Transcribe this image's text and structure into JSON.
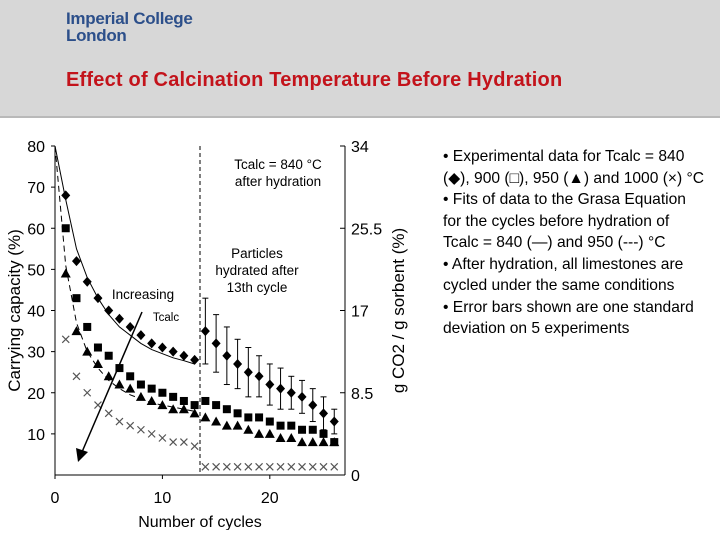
{
  "logo": {
    "line1": "Imperial College",
    "line2": "London"
  },
  "slide_title": "Effect of Calcination Temperature Before Hydration",
  "bullets": [
    "• Experimental data for Tcalc = 840 (◆), 900 (□), 950 (▲) and 1000 (×) °C",
    "• Fits of data to the Grasa Equation for the cycles before hydration of Tcalc = 840 (—) and 950 (---) °C",
    "• After hydration, all limestones are cycled under the same conditions",
    "• Error bars shown are one standard deviation on 5 experiments"
  ],
  "colors": {
    "title_red": "#c3131b",
    "logo_blue": "#2c4f8a",
    "header_gray": "#d7d7d7"
  },
  "chart_data": {
    "type": "scatter",
    "xlabel": "Number of cycles",
    "ylabel": "Carrying capacity (%)",
    "y2label": "g CO2 / g sorbent (%)",
    "xlim": [
      0,
      27
    ],
    "ylim": [
      0,
      80
    ],
    "y2lim": [
      0,
      34
    ],
    "xticks": [
      "0",
      "10",
      "20"
    ],
    "yticks": [
      "10",
      "20",
      "30",
      "40",
      "50",
      "60",
      "70",
      "80"
    ],
    "y2ticks": [
      "0",
      "8.5",
      "17",
      "25.5",
      "34"
    ],
    "hydration_cycle": 13.5,
    "annotations": {
      "hydration_top": "Tcalc = 840 °C",
      "hydration_bottom": "after hydration",
      "particles1": "Particles",
      "particles2": "hydrated after",
      "particles3": "13th cycle",
      "increasing1": "Increasing",
      "increasing2": "Tcalc"
    },
    "series": [
      {
        "marker": "diamond",
        "values": [
          [
            1,
            68
          ],
          [
            2,
            52
          ],
          [
            3,
            47
          ],
          [
            4,
            43
          ],
          [
            5,
            40
          ],
          [
            6,
            38
          ],
          [
            7,
            36
          ],
          [
            8,
            34
          ],
          [
            9,
            32
          ],
          [
            10,
            31
          ],
          [
            11,
            30
          ],
          [
            12,
            29
          ],
          [
            13,
            28
          ],
          [
            14,
            35
          ],
          [
            15,
            32
          ],
          [
            16,
            29
          ],
          [
            17,
            27
          ],
          [
            18,
            25
          ],
          [
            19,
            24
          ],
          [
            20,
            22
          ],
          [
            21,
            21
          ],
          [
            22,
            20
          ],
          [
            23,
            19
          ],
          [
            24,
            17
          ],
          [
            25,
            15
          ],
          [
            26,
            13
          ]
        ],
        "err": [
          [
            14,
            8
          ],
          [
            15,
            7
          ],
          [
            16,
            7
          ],
          [
            17,
            6
          ],
          [
            18,
            6
          ],
          [
            19,
            5
          ],
          [
            20,
            5
          ],
          [
            21,
            5
          ],
          [
            22,
            4
          ],
          [
            23,
            4
          ],
          [
            24,
            4
          ],
          [
            25,
            4
          ],
          [
            26,
            3
          ]
        ]
      },
      {
        "marker": "square",
        "values": [
          [
            1,
            60
          ],
          [
            2,
            43
          ],
          [
            3,
            36
          ],
          [
            4,
            31
          ],
          [
            5,
            29
          ],
          [
            6,
            26
          ],
          [
            7,
            24
          ],
          [
            8,
            22
          ],
          [
            9,
            21
          ],
          [
            10,
            20
          ],
          [
            11,
            19
          ],
          [
            12,
            18
          ],
          [
            13,
            17
          ],
          [
            14,
            18
          ],
          [
            15,
            17
          ],
          [
            16,
            16
          ],
          [
            17,
            15
          ],
          [
            18,
            14
          ],
          [
            19,
            14
          ],
          [
            20,
            13
          ],
          [
            21,
            12
          ],
          [
            22,
            12
          ],
          [
            23,
            11
          ],
          [
            24,
            11
          ],
          [
            25,
            10
          ],
          [
            26,
            8
          ]
        ]
      },
      {
        "marker": "triangle",
        "values": [
          [
            1,
            49
          ],
          [
            2,
            35
          ],
          [
            3,
            30
          ],
          [
            4,
            27
          ],
          [
            5,
            24
          ],
          [
            6,
            22
          ],
          [
            7,
            21
          ],
          [
            8,
            19
          ],
          [
            9,
            18
          ],
          [
            10,
            17
          ],
          [
            11,
            16
          ],
          [
            12,
            16
          ],
          [
            13,
            15
          ],
          [
            14,
            14
          ],
          [
            15,
            13
          ],
          [
            16,
            12
          ],
          [
            17,
            12
          ],
          [
            18,
            11
          ],
          [
            19,
            10
          ],
          [
            20,
            10
          ],
          [
            21,
            9
          ],
          [
            22,
            9
          ],
          [
            23,
            8
          ],
          [
            24,
            8
          ],
          [
            25,
            8
          ],
          [
            26,
            8
          ]
        ]
      },
      {
        "marker": "cross",
        "values": [
          [
            1,
            33
          ],
          [
            2,
            24
          ],
          [
            3,
            20
          ],
          [
            4,
            17
          ],
          [
            5,
            15
          ],
          [
            6,
            13
          ],
          [
            7,
            12
          ],
          [
            8,
            11
          ],
          [
            9,
            10
          ],
          [
            10,
            9
          ],
          [
            11,
            8
          ],
          [
            12,
            8
          ],
          [
            13,
            7
          ],
          [
            14,
            2
          ],
          [
            15,
            2
          ],
          [
            16,
            2
          ],
          [
            17,
            2
          ],
          [
            18,
            2
          ],
          [
            19,
            2
          ],
          [
            20,
            2
          ],
          [
            21,
            2
          ],
          [
            22,
            2
          ],
          [
            23,
            2
          ],
          [
            24,
            2
          ],
          [
            25,
            2
          ],
          [
            26,
            2
          ]
        ]
      }
    ],
    "fits": [
      {
        "style": "solid",
        "values": [
          [
            0,
            80
          ],
          [
            1,
            67
          ],
          [
            2,
            55
          ],
          [
            3,
            48
          ],
          [
            4,
            43
          ],
          [
            5,
            39
          ],
          [
            6,
            36
          ],
          [
            7,
            34
          ],
          [
            8,
            32
          ],
          [
            9,
            30.5
          ],
          [
            10,
            29.5
          ],
          [
            11,
            28.5
          ],
          [
            12,
            27.8
          ],
          [
            13,
            27
          ]
        ]
      },
      {
        "style": "dashed",
        "values": [
          [
            0,
            80
          ],
          [
            1,
            51
          ],
          [
            2,
            37
          ],
          [
            3,
            30
          ],
          [
            4,
            26
          ],
          [
            5,
            23
          ],
          [
            6,
            21
          ],
          [
            7,
            19.5
          ],
          [
            8,
            18.5
          ],
          [
            9,
            17.5
          ],
          [
            10,
            17
          ],
          [
            11,
            16.5
          ],
          [
            12,
            16
          ],
          [
            13,
            15.5
          ]
        ]
      }
    ]
  }
}
